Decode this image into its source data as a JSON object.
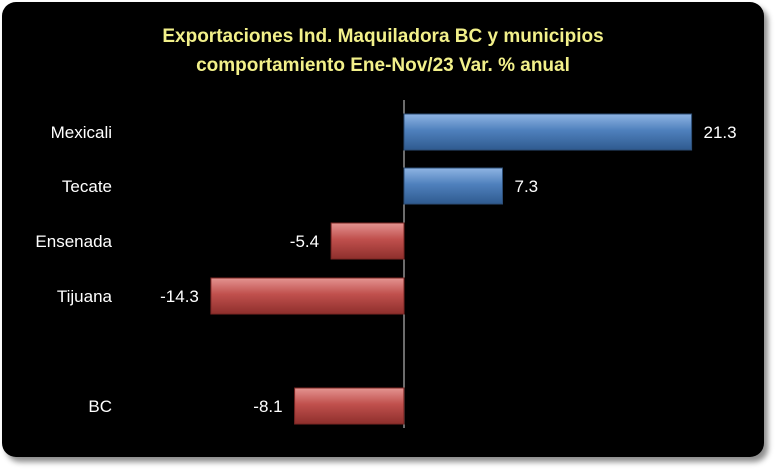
{
  "chart_data": {
    "type": "bar",
    "orientation": "horizontal",
    "title_line1": "Exportaciones Ind. Maquiladora  BC y municipios",
    "title_line2": "comportamiento Ene-Nov/23 Var. % anual",
    "categories": [
      "Mexicali",
      "Tecate",
      "Ensenada",
      "Tijuana",
      "BC"
    ],
    "values": [
      21.3,
      7.3,
      -5.4,
      -14.3,
      -8.1
    ],
    "data_labels": [
      "21.3",
      "7.3",
      "-5.4",
      "-14.3",
      "-8.1"
    ],
    "colors": {
      "positive": "#4f81bd",
      "negative": "#c0504d",
      "background": "#000000",
      "title": "#f2f08a"
    },
    "grid": false,
    "legend": "none"
  }
}
